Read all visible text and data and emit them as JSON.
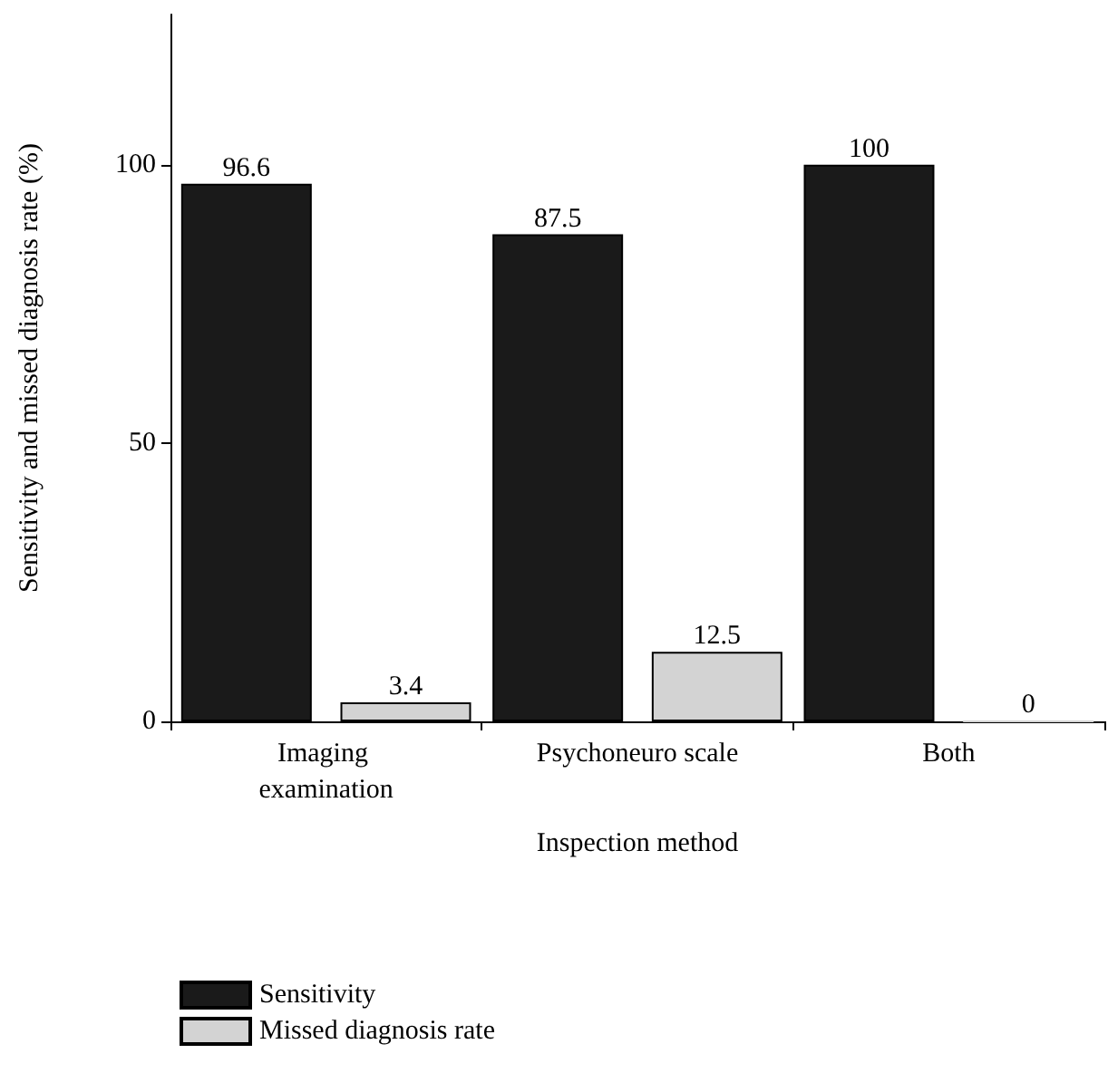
{
  "chart_data": {
    "type": "bar",
    "xlabel": "Inspection method",
    "ylabel": "Sensitivity and missed diagnosis rate (%)",
    "categories": [
      "Imaging examination",
      "Psychoneuro scale",
      "Both"
    ],
    "series": [
      {
        "name": "Sensitivity",
        "color": "#1a1a1a",
        "values": [
          96.6,
          87.5,
          100
        ]
      },
      {
        "name": "Missed diagnosis rate",
        "color": "#d3d3d3",
        "values": [
          3.4,
          12.5,
          0
        ]
      }
    ],
    "ylim": [
      0,
      127
    ],
    "yticks": [
      0,
      50,
      100
    ],
    "data_labels": true,
    "grid": false,
    "legend": "bottom left"
  }
}
